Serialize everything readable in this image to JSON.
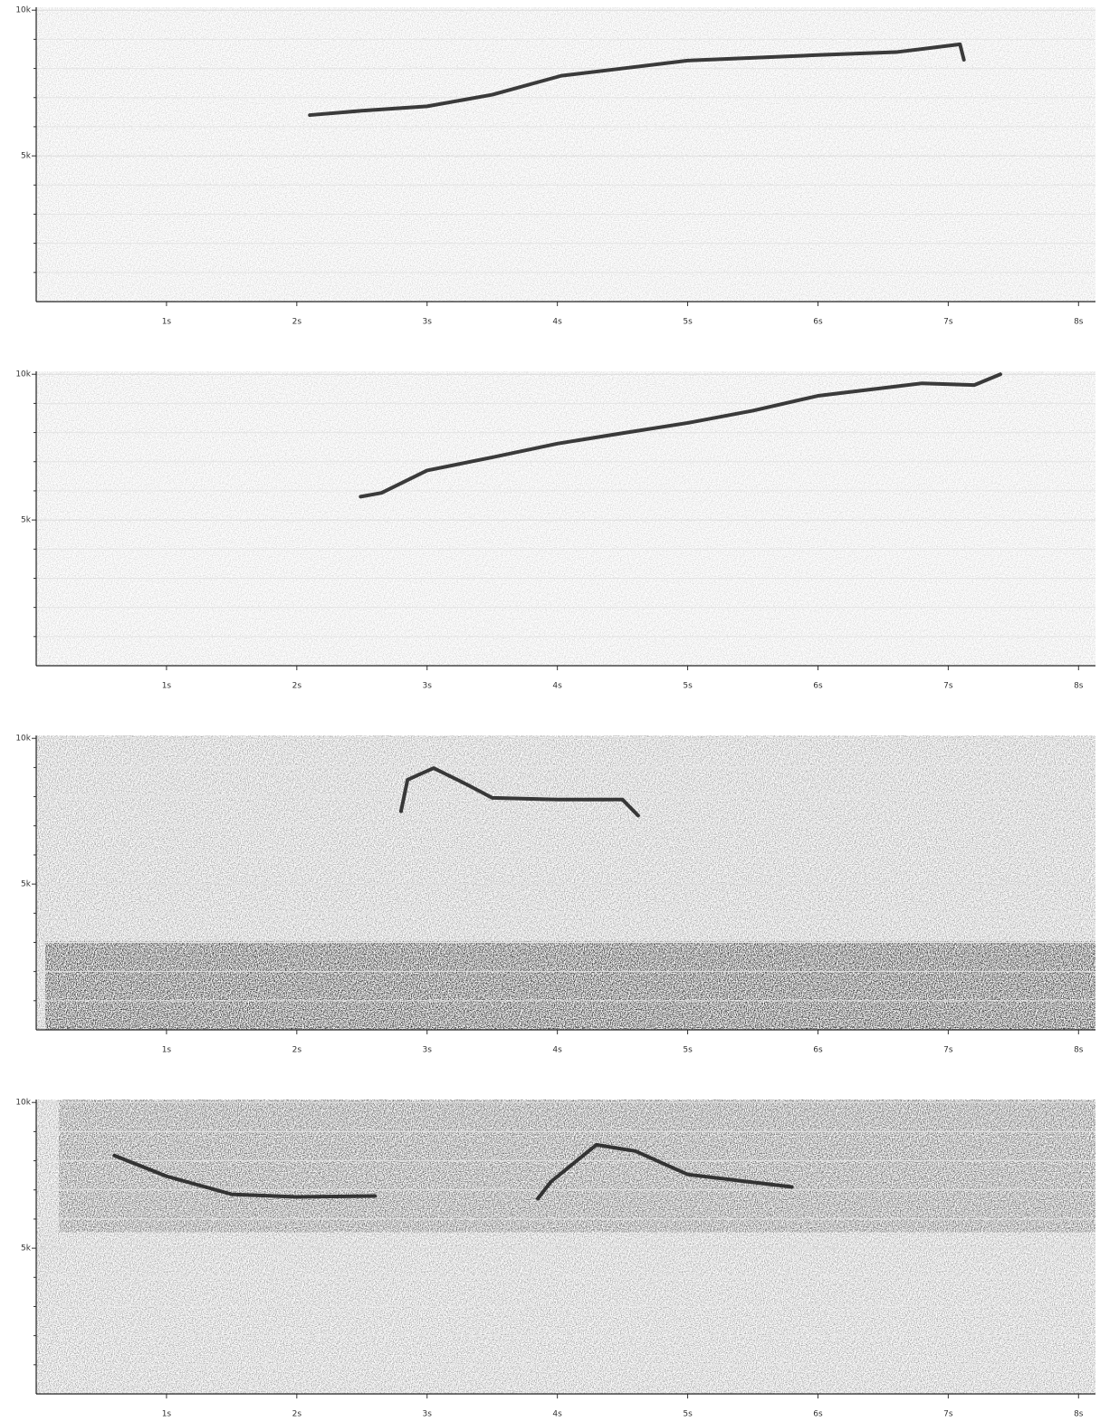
{
  "chart_data": [
    {
      "type": "spectrogram",
      "color": "#1a1a1a",
      "grid": true,
      "xlim": [
        0,
        8.13
      ],
      "ylim": [
        0,
        10100
      ],
      "xticks": [
        {
          "value": 1,
          "label": "1s"
        },
        {
          "value": 2,
          "label": "2s"
        },
        {
          "value": 3,
          "label": "3s"
        },
        {
          "value": 4,
          "label": "4s"
        },
        {
          "value": 5,
          "label": "5s"
        },
        {
          "value": 6,
          "label": "6s"
        },
        {
          "value": 7,
          "label": "7s"
        },
        {
          "value": 8,
          "label": "8s"
        }
      ],
      "yticks": [
        {
          "value": 5000,
          "label": "5k"
        },
        {
          "value": 10000,
          "label": "10k"
        }
      ],
      "yminor": [
        1000,
        2000,
        3000,
        4000,
        6000,
        7000,
        8000,
        9000
      ],
      "x": [
        2.1,
        2.5,
        3,
        3.5,
        4.03,
        4.5,
        5,
        6,
        6.6,
        7.09,
        7.12
      ],
      "values": [
        6400,
        6550,
        6700,
        7100,
        7750,
        8000,
        8270,
        8460,
        8560,
        8830,
        8300
      ]
    },
    {
      "type": "spectrogram",
      "color": "#1a1a1a",
      "grid": true,
      "xlim": [
        0,
        8.13
      ],
      "ylim": [
        0,
        10100
      ],
      "xticks": [
        {
          "value": 1,
          "label": "1s"
        },
        {
          "value": 2,
          "label": "2s"
        },
        {
          "value": 3,
          "label": "3s"
        },
        {
          "value": 4,
          "label": "4s"
        },
        {
          "value": 5,
          "label": "5s"
        },
        {
          "value": 6,
          "label": "6s"
        },
        {
          "value": 7,
          "label": "7s"
        },
        {
          "value": 8,
          "label": "8s"
        }
      ],
      "yticks": [
        {
          "value": 5000,
          "label": "5k"
        },
        {
          "value": 10000,
          "label": "10k"
        }
      ],
      "yminor": [
        1000,
        2000,
        3000,
        4000,
        6000,
        7000,
        8000,
        9000
      ],
      "x": [
        2.49,
        2.65,
        3,
        3.5,
        4,
        4.5,
        5,
        5.5,
        6,
        6.8,
        7.2,
        7.4
      ],
      "values": [
        5800,
        5930,
        6700,
        7150,
        7620,
        7980,
        8330,
        8750,
        9260,
        9690,
        9630,
        10000
      ]
    },
    {
      "type": "spectrogram",
      "color": "#1a1a1a",
      "grid": true,
      "xlim": [
        0,
        8.13
      ],
      "ylim": [
        0,
        10100
      ],
      "xticks": [
        {
          "value": 1,
          "label": "1s"
        },
        {
          "value": 2,
          "label": "2s"
        },
        {
          "value": 3,
          "label": "3s"
        },
        {
          "value": 4,
          "label": "4s"
        },
        {
          "value": 5,
          "label": "5s"
        },
        {
          "value": 6,
          "label": "6s"
        },
        {
          "value": 7,
          "label": "7s"
        },
        {
          "value": 8,
          "label": "8s"
        }
      ],
      "yticks": [
        {
          "value": 5000,
          "label": "5k"
        },
        {
          "value": 10000,
          "label": "10k"
        }
      ],
      "yminor": [
        1000,
        2000,
        3000,
        4000,
        6000,
        7000,
        8000,
        9000
      ],
      "x": [
        2.8,
        2.85,
        3.05,
        3.3,
        3.5,
        4,
        4.5,
        4.62
      ],
      "values": [
        7500,
        8580,
        8980,
        8430,
        7960,
        7900,
        7900,
        7350
      ]
    },
    {
      "type": "spectrogram",
      "color": "#1a1a1a",
      "grid": true,
      "xlim": [
        0,
        8.13
      ],
      "ylim": [
        0,
        10100
      ],
      "xticks": [
        {
          "value": 1,
          "label": "1s"
        },
        {
          "value": 2,
          "label": "2s"
        },
        {
          "value": 3,
          "label": "3s"
        },
        {
          "value": 4,
          "label": "4s"
        },
        {
          "value": 5,
          "label": "5s"
        },
        {
          "value": 6,
          "label": "6s"
        },
        {
          "value": 7,
          "label": "7s"
        },
        {
          "value": 8,
          "label": "8s"
        }
      ],
      "yticks": [
        {
          "value": 5000,
          "label": "5k"
        },
        {
          "value": 10000,
          "label": "10k"
        }
      ],
      "yminor": [
        1000,
        2000,
        3000,
        4000,
        6000,
        7000,
        8000,
        9000
      ],
      "x": [
        0.6,
        1,
        1.5,
        2,
        2.6,
        3.2,
        3.85,
        3.95,
        4.3,
        4.6,
        5,
        5.8
      ],
      "values": [
        8180,
        7470,
        6850,
        6760,
        6790,
        null,
        6700,
        7280,
        8550,
        8330,
        7530,
        7100
      ]
    }
  ]
}
